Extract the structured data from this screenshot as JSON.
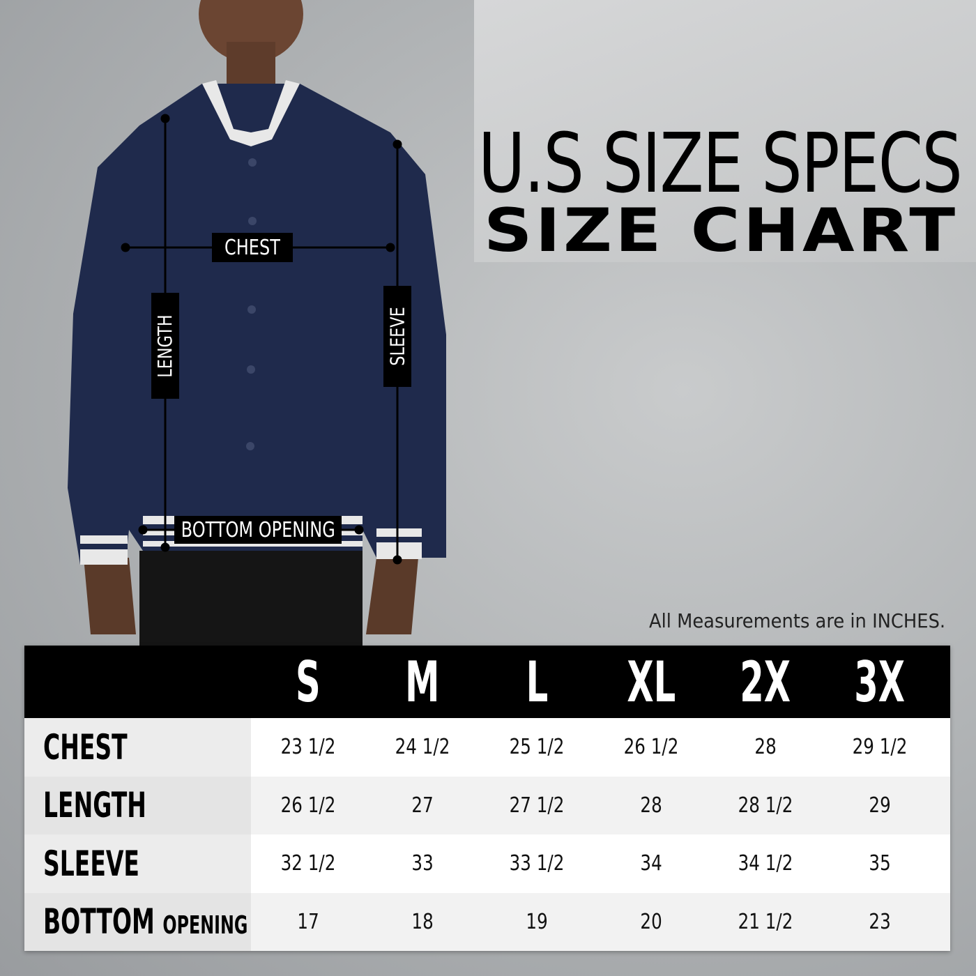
{
  "title": {
    "line1": "U.S SIZE SPECS",
    "line2": "SIZE CHART"
  },
  "note": "All Measurements are in INCHES.",
  "figure_labels": {
    "chest": "CHEST",
    "length": "LENGTH",
    "sleeve": "SLEEVE",
    "bottom_opening": "BOTTOM OPENING"
  },
  "colors": {
    "jacket": "#1f2a4c",
    "header_bg": "#000000",
    "stripe": "#ffffff"
  },
  "table": {
    "sizes": [
      "S",
      "M",
      "L",
      "XL",
      "2X",
      "3X"
    ],
    "rows": [
      {
        "label": "CHEST",
        "label_small": "",
        "values": [
          "23 1/2",
          "24 1/2",
          "25 1/2",
          "26 1/2",
          "28",
          "29 1/2"
        ]
      },
      {
        "label": "LENGTH",
        "label_small": "",
        "values": [
          "26 1/2",
          "27",
          "27 1/2",
          "28",
          "28 1/2",
          "29"
        ]
      },
      {
        "label": "SLEEVE",
        "label_small": "",
        "values": [
          "32 1/2",
          "33",
          "33 1/2",
          "34",
          "34 1/2",
          "35"
        ]
      },
      {
        "label": "BOTTOM",
        "label_small": "OPENING",
        "values": [
          "17",
          "18",
          "19",
          "20",
          "21 1/2",
          "23"
        ]
      }
    ]
  }
}
